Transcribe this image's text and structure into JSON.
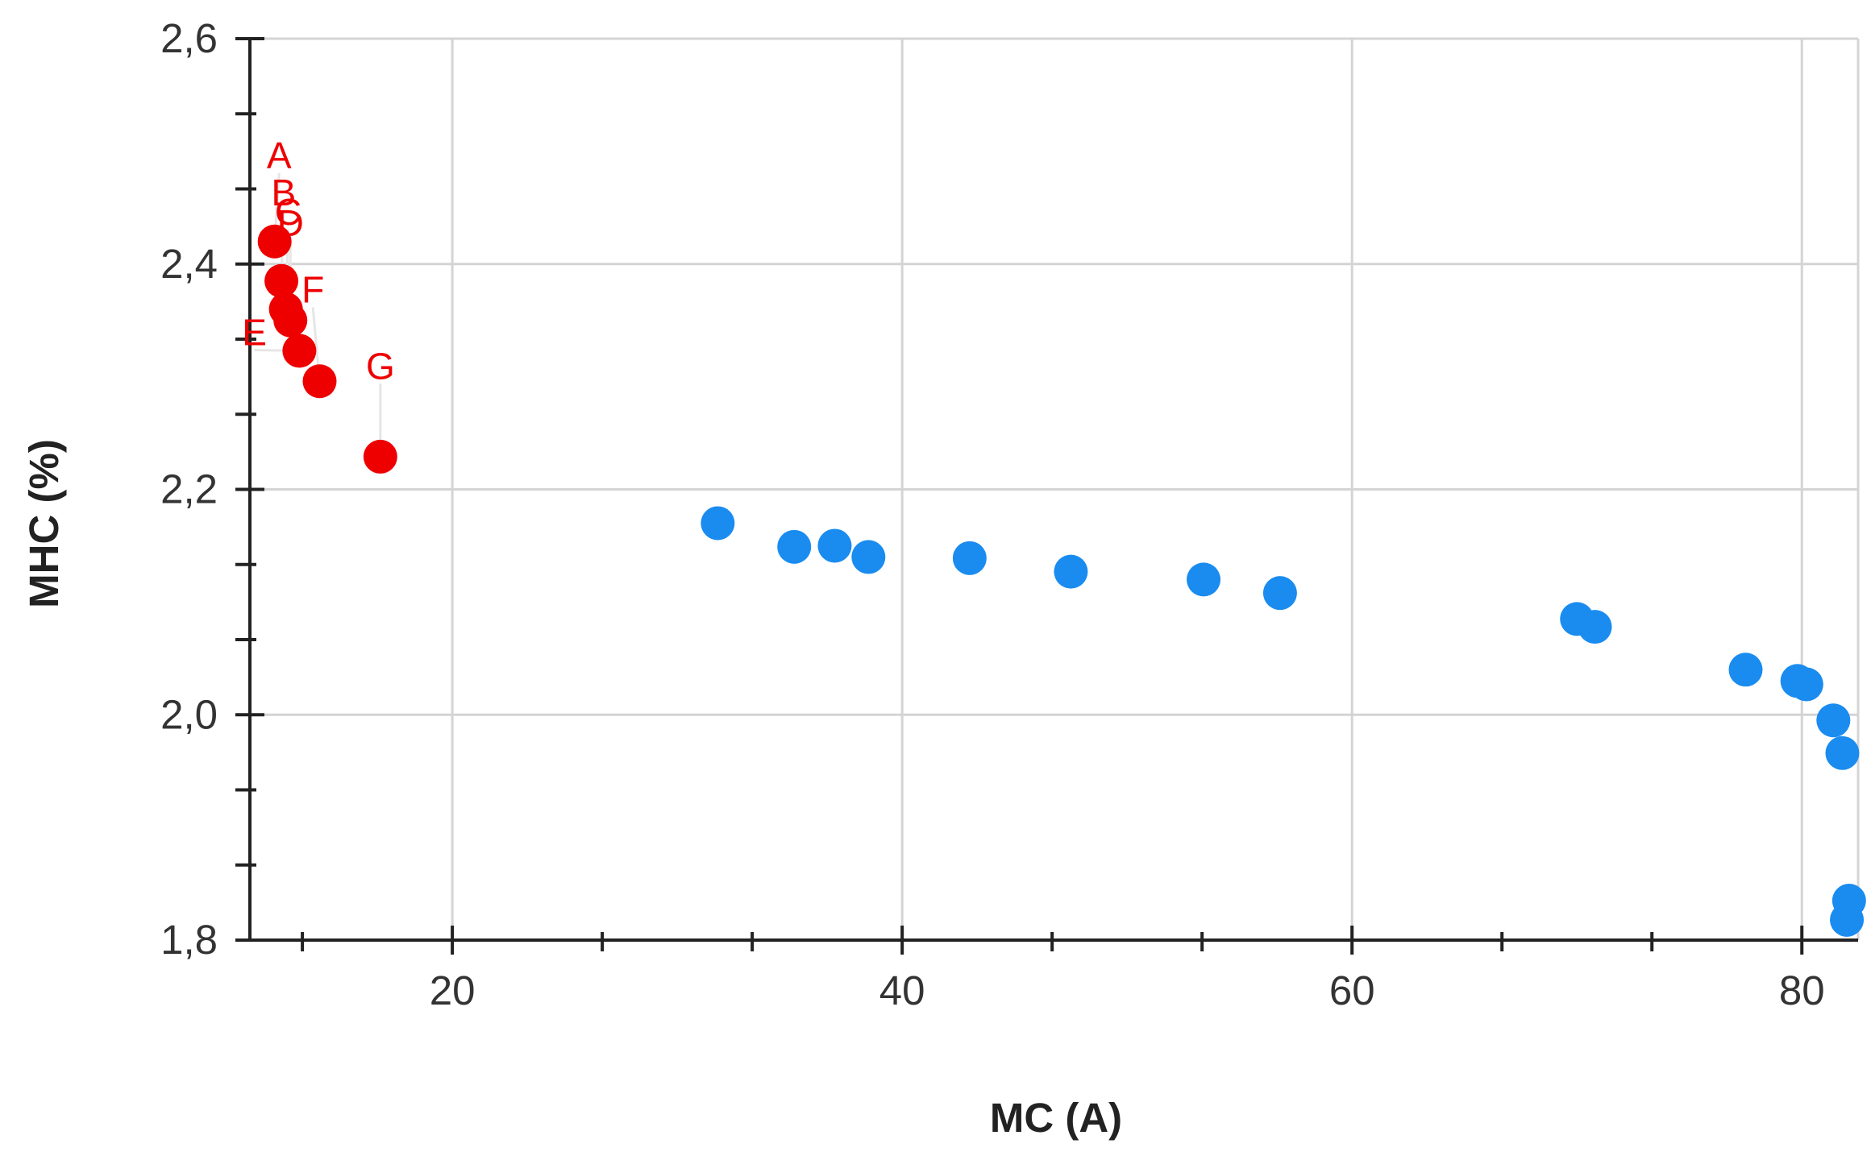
{
  "chart_data": {
    "type": "scatter",
    "title": "",
    "xlabel": "MC (A)",
    "ylabel": "MHC (%)",
    "xlim": [
      11.0,
      82.5
    ],
    "ylim": [
      1.8,
      2.6
    ],
    "x_ticks": [
      20,
      40,
      60,
      80
    ],
    "x_tick_labels": [
      "20",
      "40",
      "60",
      "80"
    ],
    "y_ticks": [
      1.8,
      2.0,
      2.2,
      2.4,
      2.6
    ],
    "y_tick_labels": [
      "1,8",
      "2,0",
      "2,2",
      "2,4",
      "2,6"
    ],
    "grid": true,
    "legend": "none",
    "colors": {
      "highlight": "#ee0000",
      "other": "#1a8cf0",
      "grid": "#d4d4d4",
      "axis": "#222222"
    },
    "series": [
      {
        "color": "#ee0000",
        "points": [
          {
            "x": 12.1,
            "y": 2.42,
            "label": "A",
            "label_x": 12.3,
            "label_y": 2.485
          },
          {
            "x": 12.4,
            "y": 2.385,
            "label": "B",
            "label_x": 12.5,
            "label_y": 2.452
          },
          {
            "x": 12.6,
            "y": 2.36,
            "label": "C",
            "label_x": 12.7,
            "label_y": 2.435
          },
          {
            "x": 12.8,
            "y": 2.35,
            "label": "D",
            "label_x": 12.8,
            "label_y": 2.425
          },
          {
            "x": 13.2,
            "y": 2.323,
            "label": "E",
            "label_x": 11.2,
            "label_y": 2.328
          },
          {
            "x": 14.1,
            "y": 2.296,
            "label": "F",
            "label_x": 13.8,
            "label_y": 2.366
          },
          {
            "x": 16.8,
            "y": 2.229,
            "label": "G",
            "label_x": 16.8,
            "label_y": 2.298
          }
        ]
      },
      {
        "color": "#1a8cf0",
        "points": [
          {
            "x": 31.8,
            "y": 2.17
          },
          {
            "x": 35.2,
            "y": 2.149
          },
          {
            "x": 37.0,
            "y": 2.15
          },
          {
            "x": 38.5,
            "y": 2.14
          },
          {
            "x": 43.0,
            "y": 2.139
          },
          {
            "x": 47.5,
            "y": 2.127
          },
          {
            "x": 53.4,
            "y": 2.12
          },
          {
            "x": 56.8,
            "y": 2.108
          },
          {
            "x": 70.0,
            "y": 2.085
          },
          {
            "x": 70.8,
            "y": 2.078
          },
          {
            "x": 77.5,
            "y": 2.04
          },
          {
            "x": 79.8,
            "y": 2.03
          },
          {
            "x": 80.2,
            "y": 2.027
          },
          {
            "x": 81.4,
            "y": 1.995
          },
          {
            "x": 81.8,
            "y": 1.966
          },
          {
            "x": 82.1,
            "y": 1.835
          },
          {
            "x": 82.0,
            "y": 1.818
          }
        ]
      }
    ]
  }
}
